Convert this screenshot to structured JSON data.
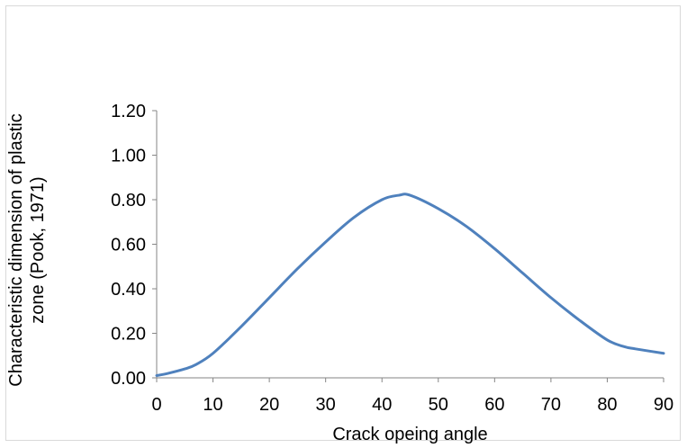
{
  "chart_data": {
    "type": "line",
    "title": "",
    "xlabel": "Crack opeing angle",
    "ylabel": [
      "Characteristic dimension of plastic",
      "zone (Pook, 1971)"
    ],
    "xlim": [
      0,
      90
    ],
    "ylim": [
      0,
      1.2
    ],
    "x_ticks": [
      "0",
      "10",
      "20",
      "30",
      "40",
      "50",
      "60",
      "70",
      "80",
      "90"
    ],
    "y_ticks": [
      "0.00",
      "0.20",
      "0.40",
      "0.60",
      "0.80",
      "1.00",
      "1.20"
    ],
    "grid": false,
    "legend": "none",
    "series": [
      {
        "color": "#4f81bd",
        "x": [
          0,
          2,
          5,
          7,
          10,
          15,
          20,
          25,
          30,
          35,
          40,
          43,
          45,
          50,
          55,
          60,
          65,
          70,
          75,
          80,
          83,
          85,
          90
        ],
        "y": [
          0.01,
          0.02,
          0.04,
          0.06,
          0.11,
          0.23,
          0.36,
          0.49,
          0.61,
          0.72,
          0.8,
          0.82,
          0.82,
          0.76,
          0.68,
          0.58,
          0.47,
          0.36,
          0.26,
          0.17,
          0.14,
          0.13,
          0.11
        ]
      }
    ]
  }
}
